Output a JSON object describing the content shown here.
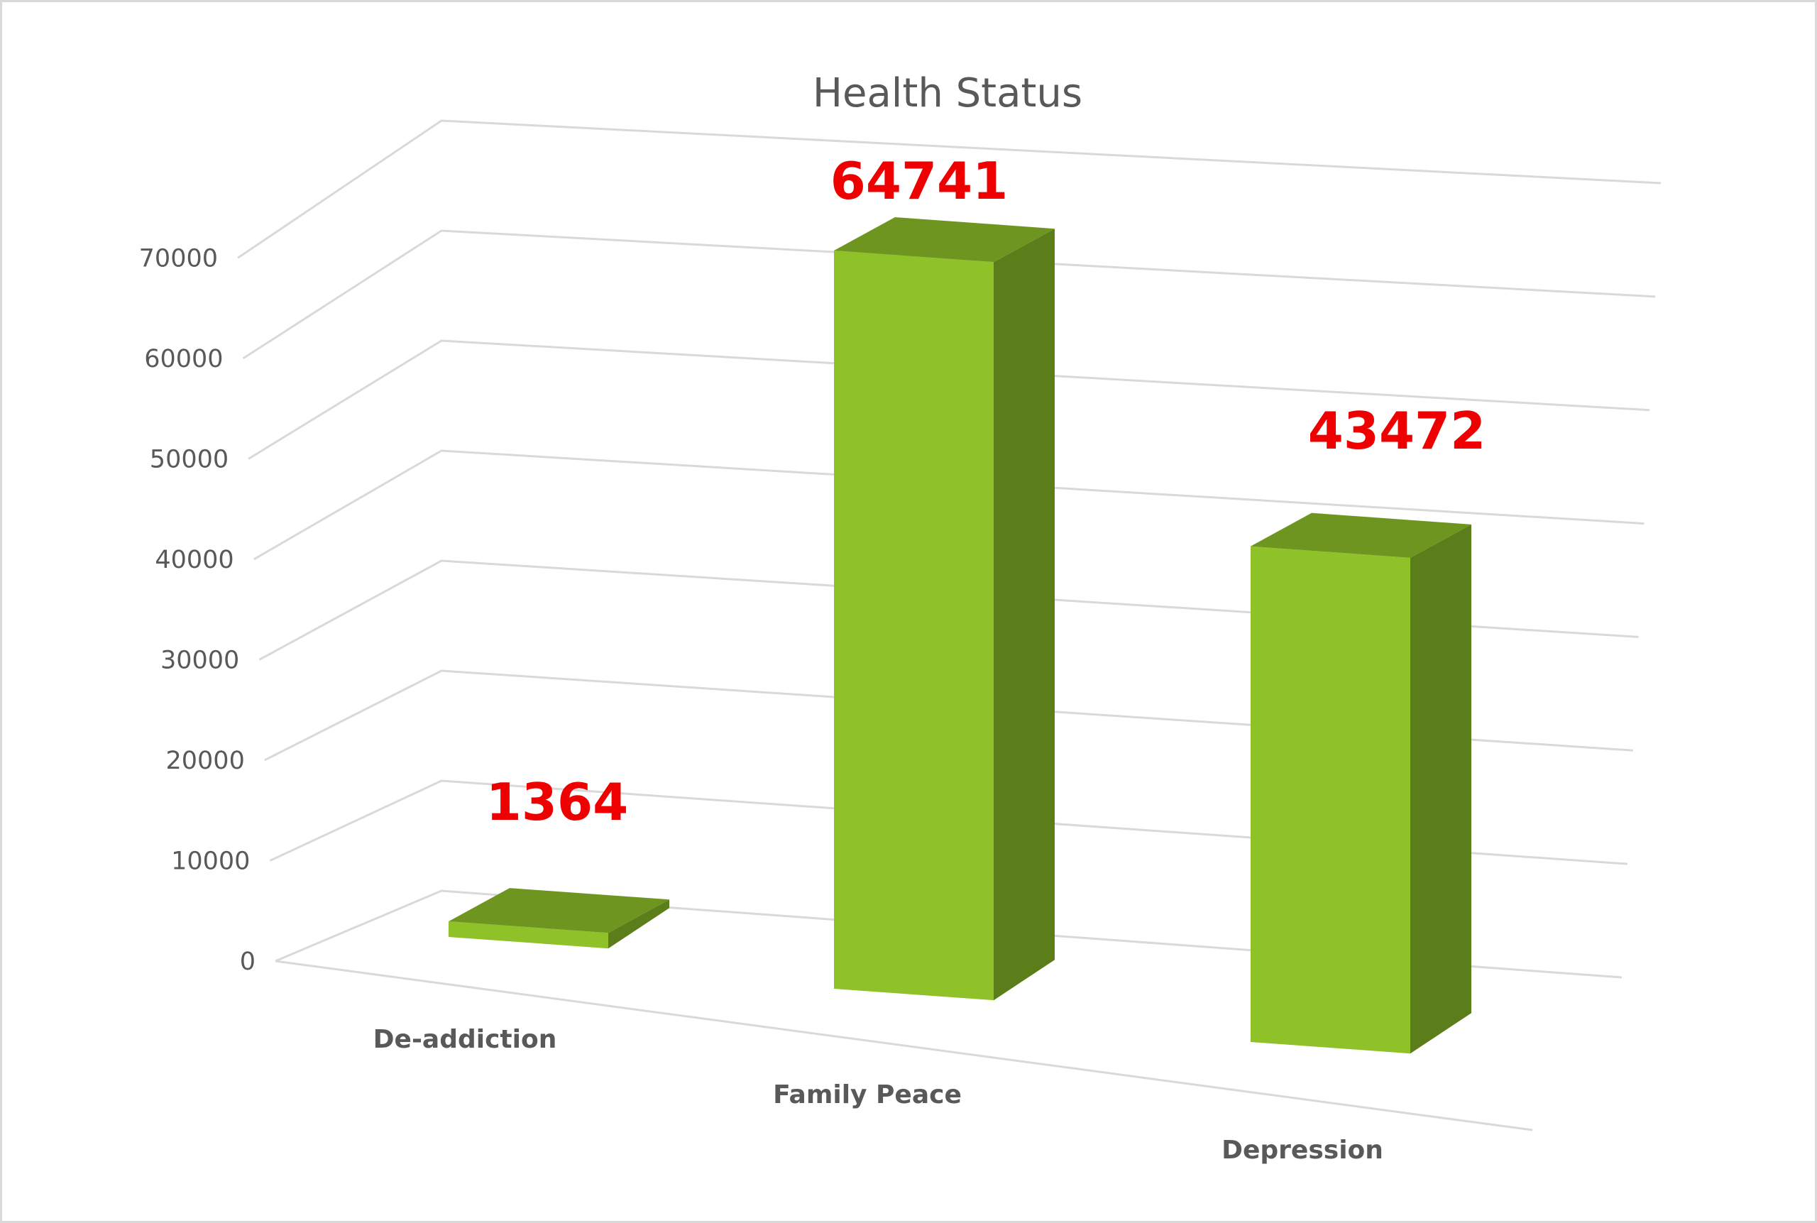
{
  "chart_data": {
    "type": "bar",
    "title": "Health Status",
    "categories": [
      "De-addiction",
      "Family Peace",
      "Depression"
    ],
    "values": [
      1364,
      64741,
      43472
    ],
    "data_labels": [
      "1364",
      "64741",
      "43472"
    ],
    "yticks": [
      "0",
      "10000",
      "20000",
      "30000",
      "40000",
      "50000",
      "60000",
      "70000"
    ],
    "ylim": [
      0,
      70000
    ],
    "grid": true,
    "style": "3d-column",
    "colors": {
      "front": "#8fc128",
      "top": "#6d951f",
      "side": "#5b7e1a",
      "label": "#ee0000"
    }
  }
}
